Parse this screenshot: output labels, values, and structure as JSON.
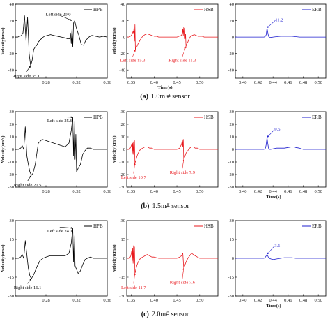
{
  "chart_data": [
    {
      "id": "a-hpb",
      "type": "line",
      "row": 0,
      "col": 0,
      "legend": "HPB",
      "color": "#000000",
      "xlim": [
        0.24,
        0.36
      ],
      "xticks": [
        0.28,
        0.32,
        0.36
      ],
      "ylim": [
        -50,
        40
      ],
      "yticks": [
        -40,
        -20,
        0,
        20,
        40
      ],
      "ylabel": "Velocity(cm/s)",
      "xlabel": "",
      "x": [
        0.24,
        0.243,
        0.246,
        0.248,
        0.25,
        0.252,
        0.254,
        0.256,
        0.258,
        0.26,
        0.262,
        0.264,
        0.266,
        0.268,
        0.27,
        0.272,
        0.275,
        0.278,
        0.282,
        0.286,
        0.29,
        0.295,
        0.3,
        0.305,
        0.308,
        0.311,
        0.312,
        0.313,
        0.314,
        0.315,
        0.316,
        0.317,
        0.318,
        0.32,
        0.323,
        0.326,
        0.329,
        0.332,
        0.336,
        0.34,
        0.345,
        0.35,
        0.355,
        0.36
      ],
      "y": [
        0,
        0,
        1,
        2,
        5,
        26,
        -5,
        24,
        -20,
        -35,
        -28,
        -15,
        -12,
        -10,
        -6,
        -4,
        -1,
        1,
        2,
        3,
        2,
        1,
        0,
        -1,
        -2,
        -2,
        5,
        -8,
        10,
        -12,
        17,
        20,
        18,
        10,
        2,
        -9,
        -10,
        -4,
        0,
        2,
        1,
        0,
        1,
        0
      ],
      "annotations": [
        {
          "text": "Left side 20.0",
          "x": 0.314,
          "y": 20,
          "tx": 0.296,
          "ty": 26
        },
        {
          "text": "Right side 35.1",
          "x": 0.26,
          "y": -35,
          "tx": 0.254,
          "ty": -44
        }
      ]
    },
    {
      "id": "a-hsb",
      "type": "line",
      "row": 0,
      "col": 1,
      "legend": "HSB",
      "color": "#e8191e",
      "xlim": [
        0.34,
        0.54
      ],
      "xticks": [
        0.35,
        0.4,
        0.45,
        0.5,
        0.55
      ],
      "ylim": [
        -50,
        40
      ],
      "yticks": [
        -40,
        -20,
        0,
        20,
        40
      ],
      "ylabel": "Velocity(cm/s)",
      "xlabel": "",
      "x": [
        0.34,
        0.345,
        0.348,
        0.35,
        0.352,
        0.354,
        0.355,
        0.356,
        0.357,
        0.358,
        0.359,
        0.36,
        0.362,
        0.365,
        0.37,
        0.375,
        0.38,
        0.385,
        0.39,
        0.395,
        0.4,
        0.405,
        0.41,
        0.42,
        0.43,
        0.44,
        0.45,
        0.455,
        0.46,
        0.462,
        0.463,
        0.464,
        0.465,
        0.466,
        0.467,
        0.468,
        0.469,
        0.47,
        0.472,
        0.474,
        0.476,
        0.478,
        0.48,
        0.484,
        0.488,
        0.492,
        0.496,
        0.5,
        0.505,
        0.51,
        0.52,
        0.53,
        0.54
      ],
      "y": [
        0,
        0,
        1,
        2,
        4,
        7,
        5,
        12,
        -5,
        15,
        -15,
        -13,
        -12,
        -8,
        -3,
        1,
        3,
        4,
        3,
        2,
        1,
        1,
        0,
        0,
        0,
        0,
        0,
        1,
        2,
        5,
        10,
        2,
        12,
        3,
        11,
        -2,
        4,
        -11,
        -8,
        -6,
        -3,
        -1,
        1,
        2,
        3,
        2,
        1,
        1,
        1,
        0,
        0,
        0,
        0
      ],
      "annotations": [
        {
          "text": "Left side 15.3",
          "x": 0.359,
          "y": -15,
          "tx": 0.353,
          "ty": -25
        },
        {
          "text": "Right side 11.3",
          "x": 0.47,
          "y": -11,
          "tx": 0.462,
          "ty": -25
        }
      ]
    },
    {
      "id": "a-erb",
      "type": "line",
      "row": 0,
      "col": 2,
      "legend": "ERB",
      "color": "#1f1fcf",
      "xlim": [
        0.39,
        0.51
      ],
      "xticks": [
        0.4,
        0.42,
        0.44,
        0.46,
        0.48,
        0.5
      ],
      "ylim": [
        -50,
        40
      ],
      "yticks": [
        -40,
        -20,
        0,
        20,
        40
      ],
      "ylabel": "",
      "xlabel": "",
      "x": [
        0.39,
        0.4,
        0.41,
        0.42,
        0.428,
        0.43,
        0.431,
        0.432,
        0.433,
        0.434,
        0.435,
        0.437,
        0.44,
        0.445,
        0.45,
        0.455,
        0.46,
        0.465,
        0.47,
        0.475,
        0.48,
        0.49,
        0.5,
        0.51
      ],
      "y": [
        0,
        0,
        0,
        0,
        0,
        1,
        3,
        11.2,
        6,
        1,
        0,
        -0.5,
        0,
        0.5,
        1,
        1,
        1,
        1,
        0.5,
        0,
        0,
        0,
        0,
        0
      ],
      "annotations": [
        {
          "text": "11.2",
          "x": 0.432,
          "y": 11.2,
          "tx": 0.443,
          "ty": 19
        }
      ]
    },
    {
      "id": "b-hpb",
      "type": "line",
      "row": 1,
      "col": 0,
      "legend": "HPB",
      "color": "#000000",
      "xlim": [
        0.24,
        0.36
      ],
      "xticks": [
        0.28,
        0.32,
        0.36
      ],
      "ylim": [
        -30,
        30
      ],
      "yticks": [
        -30,
        -20,
        -10,
        0,
        10,
        20,
        30
      ],
      "ylabel": "Velocity(cm/s)",
      "xlabel": "",
      "x": [
        0.24,
        0.244,
        0.247,
        0.249,
        0.251,
        0.253,
        0.255,
        0.257,
        0.259,
        0.261,
        0.263,
        0.266,
        0.27,
        0.275,
        0.28,
        0.285,
        0.29,
        0.295,
        0.3,
        0.305,
        0.31,
        0.313,
        0.315,
        0.316,
        0.317,
        0.318,
        0.319,
        0.32,
        0.322,
        0.325,
        0.328,
        0.331,
        0.334,
        0.338,
        0.342,
        0.346,
        0.35,
        0.355,
        0.36
      ],
      "y": [
        0,
        0,
        1,
        3,
        0,
        18,
        -5,
        -12,
        -18,
        -20.5,
        -19,
        -12,
        5,
        8,
        7,
        6,
        5,
        4,
        3,
        2,
        5,
        15,
        25.6,
        -5,
        22,
        -8,
        12,
        -18,
        -15,
        -12,
        -4,
        -1,
        1,
        1,
        0,
        0,
        0,
        0,
        0
      ],
      "annotations": [
        {
          "text": "Left side 25.6",
          "x": 0.315,
          "y": 25.6,
          "tx": 0.298,
          "ty": 25
        },
        {
          "text": "Right side 20.5",
          "x": 0.261,
          "y": -20.5,
          "tx": 0.256,
          "ty": -26
        }
      ]
    },
    {
      "id": "b-hsb",
      "type": "line",
      "row": 1,
      "col": 1,
      "legend": "HSB",
      "color": "#e8191e",
      "xlim": [
        0.34,
        0.54
      ],
      "xticks": [
        0.35,
        0.4,
        0.45,
        0.5,
        0.55
      ],
      "ylim": [
        -30,
        30
      ],
      "yticks": [
        -30,
        -20,
        -10,
        0,
        10,
        20,
        30
      ],
      "ylabel": "Velocity(cm/s)",
      "xlabel": "",
      "x": [
        0.34,
        0.346,
        0.349,
        0.351,
        0.352,
        0.353,
        0.354,
        0.355,
        0.356,
        0.357,
        0.358,
        0.359,
        0.36,
        0.362,
        0.365,
        0.37,
        0.375,
        0.38,
        0.385,
        0.39,
        0.395,
        0.4,
        0.41,
        0.42,
        0.43,
        0.44,
        0.45,
        0.456,
        0.46,
        0.462,
        0.463,
        0.464,
        0.465,
        0.466,
        0.468,
        0.47,
        0.474,
        0.478,
        0.482,
        0.486,
        0.49,
        0.495,
        0.5,
        0.51,
        0.52,
        0.53,
        0.54
      ],
      "y": [
        0,
        0,
        2,
        4,
        -3,
        5,
        -4,
        6,
        -6,
        7,
        -10.7,
        -10,
        -9,
        -6,
        -3,
        0,
        1,
        2,
        2,
        1,
        1,
        0,
        0,
        0,
        0,
        0,
        0,
        1,
        4,
        7,
        2,
        8,
        -7.9,
        -7,
        -5,
        -3,
        -1,
        1,
        2,
        2,
        1,
        1,
        0,
        0,
        0,
        0,
        0
      ],
      "annotations": [
        {
          "text": "Left side 10.7",
          "x": 0.358,
          "y": -10.7,
          "tx": 0.355,
          "ty": -20
        },
        {
          "text": "Right side 7.9",
          "x": 0.465,
          "y": -7.9,
          "tx": 0.462,
          "ty": -16
        }
      ]
    },
    {
      "id": "b-erb",
      "type": "line",
      "row": 1,
      "col": 2,
      "legend": "ERB",
      "color": "#1f1fcf",
      "xlim": [
        0.39,
        0.51
      ],
      "xticks": [
        0.4,
        0.42,
        0.44,
        0.46,
        0.48,
        0.5
      ],
      "ylim": [
        -30,
        30
      ],
      "yticks": [
        -30,
        -20,
        -10,
        0,
        10,
        20,
        30
      ],
      "ylabel": "",
      "xlabel": "Time(s)",
      "x": [
        0.39,
        0.4,
        0.41,
        0.42,
        0.428,
        0.43,
        0.431,
        0.432,
        0.433,
        0.434,
        0.435,
        0.437,
        0.44,
        0.445,
        0.45,
        0.455,
        0.46,
        0.465,
        0.468,
        0.47,
        0.475,
        0.48,
        0.49,
        0.5,
        0.51
      ],
      "y": [
        0,
        0,
        0,
        0,
        0,
        1,
        4,
        9.5,
        5,
        1,
        0,
        0,
        0.5,
        1,
        1,
        1,
        1.5,
        2,
        2,
        1.5,
        1,
        0,
        0,
        0,
        0
      ],
      "annotations": [
        {
          "text": "9.5",
          "x": 0.432,
          "y": 9.5,
          "tx": 0.442,
          "ty": 15
        }
      ]
    },
    {
      "id": "c-hpb",
      "type": "line",
      "row": 2,
      "col": 0,
      "legend": "HPB",
      "color": "#000000",
      "xlim": [
        0.24,
        0.36
      ],
      "xticks": [
        0.28,
        0.32,
        0.36
      ],
      "ylim": [
        -30,
        30
      ],
      "yticks": [
        -30,
        -15,
        0,
        15,
        30
      ],
      "ylabel": "Velocity(cm/s)",
      "xlabel": "",
      "x": [
        0.24,
        0.244,
        0.247,
        0.249,
        0.251,
        0.253,
        0.255,
        0.257,
        0.259,
        0.261,
        0.264,
        0.268,
        0.272,
        0.276,
        0.28,
        0.285,
        0.29,
        0.295,
        0.3,
        0.305,
        0.31,
        0.313,
        0.315,
        0.316,
        0.317,
        0.318,
        0.32,
        0.322,
        0.325,
        0.328,
        0.331,
        0.334,
        0.338,
        0.342,
        0.346,
        0.35,
        0.355,
        0.36
      ],
      "y": [
        0,
        0,
        1,
        3,
        0,
        14,
        3,
        -8,
        -14,
        -16.1,
        -13,
        -7,
        -2,
        0,
        1,
        2,
        2,
        2,
        2,
        2,
        4,
        12,
        24.1,
        -3,
        18,
        -6,
        -9,
        -12,
        -10,
        -5,
        -1,
        0,
        1,
        0,
        0,
        0,
        0,
        0
      ],
      "annotations": [
        {
          "text": "Left side 24.1",
          "x": 0.315,
          "y": 24.1,
          "tx": 0.298,
          "ty": 24
        },
        {
          "text": "Right side 16.1",
          "x": 0.261,
          "y": -16.1,
          "tx": 0.256,
          "ty": -21
        }
      ]
    },
    {
      "id": "c-hsb",
      "type": "line",
      "row": 2,
      "col": 1,
      "legend": "HSB",
      "color": "#e8191e",
      "xlim": [
        0.34,
        0.54
      ],
      "xticks": [
        0.35,
        0.4,
        0.45,
        0.5,
        0.55
      ],
      "ylim": [
        -30,
        30
      ],
      "yticks": [
        -30,
        -15,
        0,
        15,
        30
      ],
      "ylabel": "Velocity(cm/s)",
      "xlabel": "",
      "x": [
        0.34,
        0.346,
        0.349,
        0.351,
        0.352,
        0.353,
        0.354,
        0.355,
        0.356,
        0.357,
        0.358,
        0.359,
        0.36,
        0.362,
        0.365,
        0.37,
        0.375,
        0.38,
        0.385,
        0.39,
        0.395,
        0.4,
        0.41,
        0.42,
        0.43,
        0.44,
        0.45,
        0.456,
        0.46,
        0.463,
        0.465,
        0.466,
        0.468,
        0.47,
        0.474,
        0.478,
        0.48,
        0.482,
        0.486,
        0.49,
        0.495,
        0.5,
        0.51,
        0.52,
        0.53,
        0.54
      ],
      "y": [
        0,
        0,
        2,
        6,
        -2,
        8,
        -4,
        10,
        -6,
        9,
        -11.7,
        -11,
        -9,
        -6,
        -3,
        0,
        1,
        2,
        3,
        2,
        1,
        1,
        0,
        0,
        0,
        0,
        0,
        1,
        2,
        4,
        -7.6,
        -7,
        -5,
        -3,
        0,
        2,
        3,
        4,
        3,
        2,
        1,
        0,
        0,
        0,
        0,
        0
      ],
      "annotations": [
        {
          "text": "Left side 11.7",
          "x": 0.358,
          "y": -11.7,
          "tx": 0.355,
          "ty": -21
        },
        {
          "text": "Right side 7.6",
          "x": 0.465,
          "y": -7.6,
          "tx": 0.462,
          "ty": -17
        }
      ]
    },
    {
      "id": "c-erb",
      "type": "line",
      "row": 2,
      "col": 2,
      "legend": "ERB",
      "color": "#1f1fcf",
      "xlim": [
        0.39,
        0.51
      ],
      "xticks": [
        0.4,
        0.42,
        0.44,
        0.46,
        0.48,
        0.5
      ],
      "ylim": [
        -30,
        30
      ],
      "yticks": [
        -30,
        -15,
        0,
        15,
        30
      ],
      "ylabel": "",
      "xlabel": "Time(s)",
      "x": [
        0.39,
        0.4,
        0.41,
        0.42,
        0.428,
        0.43,
        0.431,
        0.432,
        0.433,
        0.434,
        0.435,
        0.437,
        0.44,
        0.445,
        0.45,
        0.455,
        0.46,
        0.465,
        0.47,
        0.475,
        0.48,
        0.49,
        0.5,
        0.51
      ],
      "y": [
        0,
        0,
        0,
        0,
        0,
        1,
        2,
        3.1,
        2,
        0.5,
        0,
        -0.5,
        -1,
        -0.5,
        0,
        0.5,
        0.5,
        0.5,
        0,
        0,
        0,
        0,
        0,
        0
      ],
      "annotations": [
        {
          "text": "3.1",
          "x": 0.432,
          "y": 3.1,
          "tx": 0.442,
          "ty": 9
        }
      ]
    }
  ],
  "row_xlabels": [
    "Time(s)",
    "",
    ""
  ],
  "captions": [
    {
      "label": "(a)",
      "text": "1.0m # sensor"
    },
    {
      "label": "(b)",
      "text": "1.5m# sensor"
    },
    {
      "label": "(c)",
      "text": "2.0m# sensor"
    }
  ]
}
